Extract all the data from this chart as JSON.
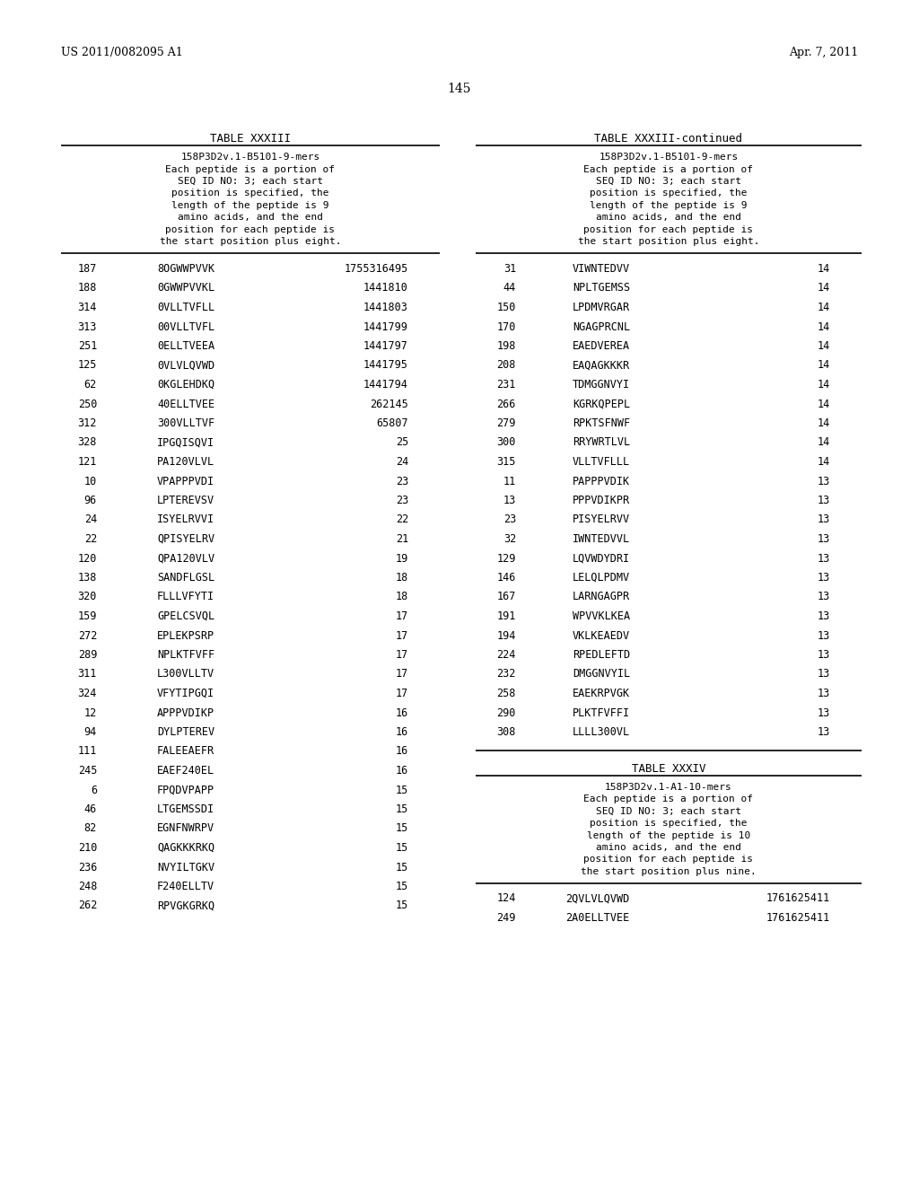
{
  "header_left": "US 2011/0082095 A1",
  "header_right": "Apr. 7, 2011",
  "page_number": "145",
  "table_left_title": "TABLE XXXIII",
  "table_right_title": "TABLE XXXIII-continued",
  "table_left_subtitle": [
    "158P3D2v.1-B5101-9-mers",
    "Each peptide is a portion of",
    "SEQ ID NO: 3; each start",
    "position is specified, the",
    "length of the peptide is 9",
    "amino acids, and the end",
    "position for each peptide is",
    "the start position plus eight."
  ],
  "table_right_subtitle": [
    "158P3D2v.1-B5101-9-mers",
    "Each peptide is a portion of",
    "SEQ ID NO: 3; each start",
    "position is specified, the",
    "length of the peptide is 9",
    "amino acids, and the end",
    "position for each peptide is",
    "the start position plus eight."
  ],
  "table_left_data": [
    [
      "187",
      "8OGWWPVVK",
      "1755316495"
    ],
    [
      "188",
      "0GWWPVVKL",
      "1441810"
    ],
    [
      "314",
      "0VLLTVFLL",
      "1441803"
    ],
    [
      "313",
      "00VLLTVFL",
      "1441799"
    ],
    [
      "251",
      "0ELLTVEEA",
      "1441797"
    ],
    [
      "125",
      "0VLVLQVWD",
      "1441795"
    ],
    [
      "62",
      "0KGLEHDKQ",
      "1441794"
    ],
    [
      "250",
      "40ELLTVEE",
      "262145"
    ],
    [
      "312",
      "300VLLTVF",
      "65807"
    ],
    [
      "328",
      "IPGQISQVI",
      "25"
    ],
    [
      "121",
      "PA120VLVL",
      "24"
    ],
    [
      "10",
      "VPAPPPVDI",
      "23"
    ],
    [
      "96",
      "LPTEREVSV",
      "23"
    ],
    [
      "24",
      "ISYELRVVI",
      "22"
    ],
    [
      "22",
      "QPISYELRV",
      "21"
    ],
    [
      "120",
      "QPA120VLV",
      "19"
    ],
    [
      "138",
      "SANDFLGSL",
      "18"
    ],
    [
      "320",
      "FLLLVFYTI",
      "18"
    ],
    [
      "159",
      "GPELCSVQL",
      "17"
    ],
    [
      "272",
      "EPLEKPSRP",
      "17"
    ],
    [
      "289",
      "NPLKTFVFF",
      "17"
    ],
    [
      "311",
      "L300VLLTV",
      "17"
    ],
    [
      "324",
      "VFYTIPGQI",
      "17"
    ],
    [
      "12",
      "APPPVDIKP",
      "16"
    ],
    [
      "94",
      "DYLPTEREV",
      "16"
    ],
    [
      "111",
      "FALEEAEFR",
      "16"
    ],
    [
      "245",
      "EAEF240EL",
      "16"
    ],
    [
      "6",
      "FPQDVPAPP",
      "15"
    ],
    [
      "46",
      "LTGEMSSDI",
      "15"
    ],
    [
      "82",
      "EGNFNWRPV",
      "15"
    ],
    [
      "210",
      "QAGKKKRKQ",
      "15"
    ],
    [
      "236",
      "NVYILTGKV",
      "15"
    ],
    [
      "248",
      "F240ELLTV",
      "15"
    ],
    [
      "262",
      "RPVGKGRKQ",
      "15"
    ]
  ],
  "table_right_data": [
    [
      "31",
      "VIWNTEDVV",
      "14"
    ],
    [
      "44",
      "NPLTGEMSS",
      "14"
    ],
    [
      "150",
      "LPDMVRGAR",
      "14"
    ],
    [
      "170",
      "NGAGPRCNL",
      "14"
    ],
    [
      "198",
      "EAEDVEREA",
      "14"
    ],
    [
      "208",
      "EAQAGKKKR",
      "14"
    ],
    [
      "231",
      "TDMGGNVYI",
      "14"
    ],
    [
      "266",
      "KGRKQPEPL",
      "14"
    ],
    [
      "279",
      "RPKTSFNWF",
      "14"
    ],
    [
      "300",
      "RRYWRTLVL",
      "14"
    ],
    [
      "315",
      "VLLTVFLLL",
      "14"
    ],
    [
      "11",
      "PAPPPVDIK",
      "13"
    ],
    [
      "13",
      "PPPVDIKPR",
      "13"
    ],
    [
      "23",
      "PISYELRVV",
      "13"
    ],
    [
      "32",
      "IWNTEDVVL",
      "13"
    ],
    [
      "129",
      "LQVWDYDRI",
      "13"
    ],
    [
      "146",
      "LELQLPDMV",
      "13"
    ],
    [
      "167",
      "LARNGAGPR",
      "13"
    ],
    [
      "191",
      "WPVVKLKEA",
      "13"
    ],
    [
      "194",
      "VKLKEAEDV",
      "13"
    ],
    [
      "224",
      "RPEDLEFTD",
      "13"
    ],
    [
      "232",
      "DMGGNVYIL",
      "13"
    ],
    [
      "258",
      "EAEKRPVGK",
      "13"
    ],
    [
      "290",
      "PLKTFVFFI",
      "13"
    ],
    [
      "308",
      "LLLL300VL",
      "13"
    ]
  ],
  "table_xxxiv_title": "TABLE XXXIV",
  "table_xxxiv_subtitle": [
    "158P3D2v.1-A1-10-mers",
    "Each peptide is a portion of",
    "SEQ ID NO: 3; each start",
    "position is specified, the",
    "length of the peptide is 10",
    "amino acids, and the end",
    "position for each peptide is",
    "the start position plus nine."
  ],
  "table_xxxiv_data": [
    [
      "124",
      "2QVLVLQVWD",
      "1761625411"
    ],
    [
      "249",
      "2A0ELLTVEE",
      "1761625411"
    ]
  ],
  "bg_color": "#ffffff"
}
